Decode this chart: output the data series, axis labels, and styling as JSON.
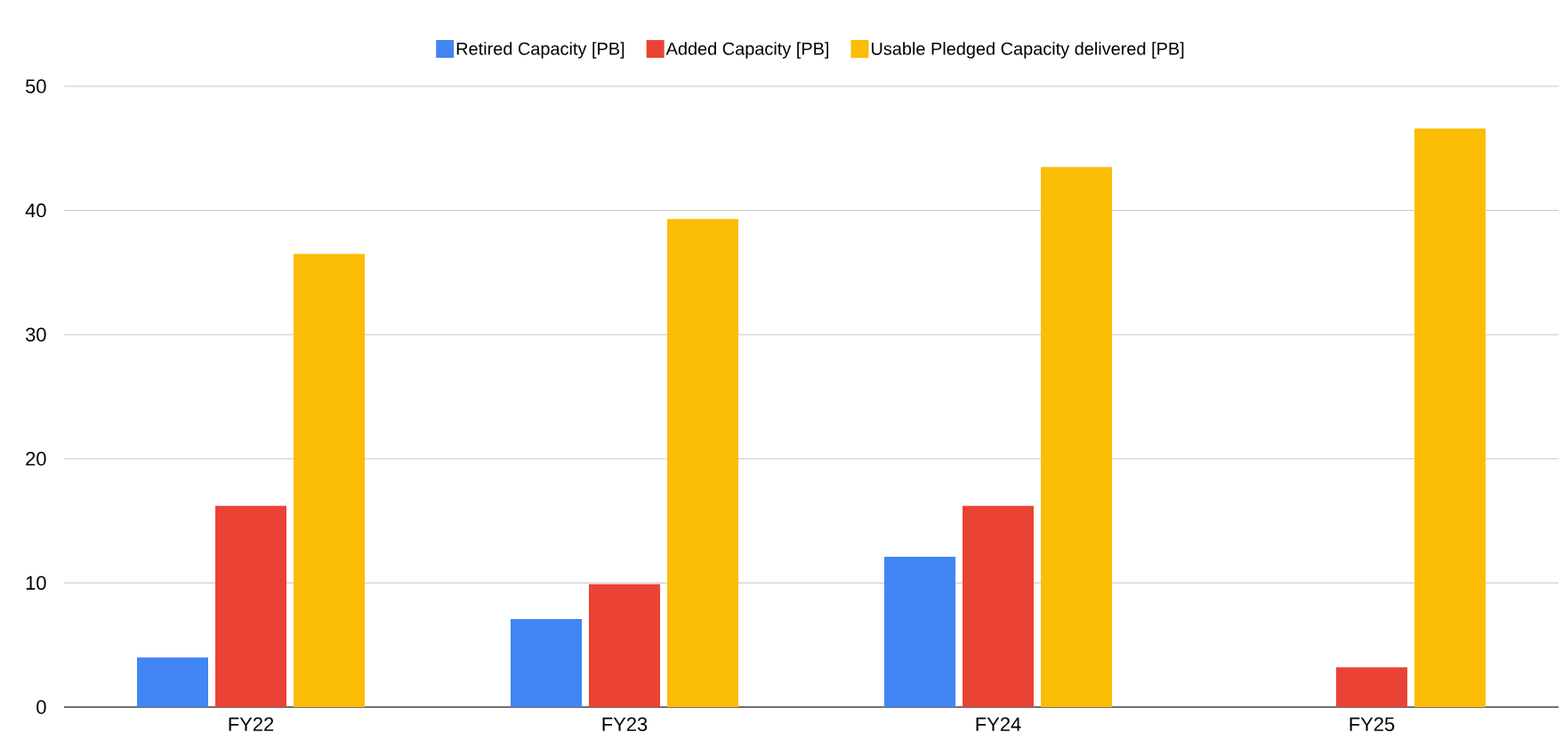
{
  "chart_data": {
    "type": "bar",
    "categories": [
      "FY22",
      "FY23",
      "FY24",
      "FY25"
    ],
    "series": [
      {
        "name": "Retired Capacity [PB]",
        "color": "#4285f4",
        "values": [
          4.0,
          7.1,
          12.1,
          null
        ]
      },
      {
        "name": "Added Capacity [PB]",
        "color": "#ea4335",
        "values": [
          16.2,
          9.9,
          16.2,
          3.2
        ]
      },
      {
        "name": "Usable Pledged Capacity delivered [PB]",
        "color": "#fbbc04",
        "values": [
          36.5,
          39.3,
          43.5,
          46.6
        ]
      }
    ],
    "ylim": [
      0,
      50
    ],
    "yticks": [
      0,
      10,
      20,
      30,
      40,
      50
    ],
    "grid": "y",
    "legend": "top"
  }
}
